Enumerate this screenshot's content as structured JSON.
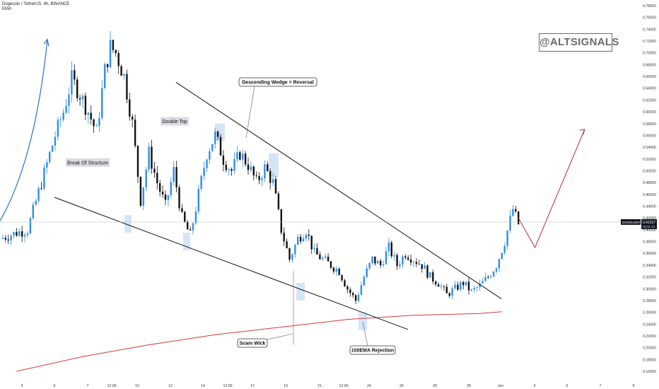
{
  "header": {
    "title": "Dogecoin / TetherUS, 4h, BINANCE",
    "indicator": "EMA"
  },
  "watermark": "@ALTSIGNALS",
  "price_tag": {
    "symbol": "DOGEUSDT",
    "price": "0.41317",
    "sub": "00:31:13"
  },
  "colors": {
    "up": "#2f8ee6",
    "down": "#111111",
    "ema": "#d23a3a",
    "projection": "#b8283a",
    "zone": "#d9dde2",
    "highlight": "#cfe2f6"
  },
  "chart_data": {
    "type": "candlestick",
    "title": "Dogecoin / TetherUS, 4h, BINANCE",
    "xlabel": "",
    "ylabel": "",
    "x_ticks": [
      "3",
      "5",
      "7",
      "12:00",
      "10",
      "12",
      "14",
      "12:00",
      "17",
      "19",
      "21",
      "12:00",
      "24",
      "26",
      "28",
      "30",
      "Jun",
      "3",
      "5",
      "7",
      "9"
    ],
    "y_ticks": [
      "0.16000",
      "0.18000",
      "0.20000",
      "0.22000",
      "0.24000",
      "0.26000",
      "0.28000",
      "0.30000",
      "0.32000",
      "0.34000",
      "0.36000",
      "0.38000",
      "0.40000",
      "0.42000",
      "0.44000",
      "0.46000",
      "0.48000",
      "0.50000",
      "0.52000",
      "0.54000",
      "0.56000",
      "0.58000",
      "0.60000",
      "0.62000",
      "0.64000",
      "0.66000",
      "0.68000",
      "0.70000",
      "0.72000",
      "0.74000",
      "0.76000",
      "0.78000"
    ],
    "ylim": [
      0.155,
      0.785
    ],
    "current_price": 0.41317,
    "price_path": [
      [
        "May 02 00:00",
        0.385
      ],
      [
        "May 03 00:00",
        0.395
      ],
      [
        "May 03 16:00",
        0.4
      ],
      [
        "May 04 12:00",
        0.48
      ],
      [
        "May 05 08:00",
        0.56
      ],
      [
        "May 05 20:00",
        0.6
      ],
      [
        "May 06 08:00",
        0.655
      ],
      [
        "May 06 20:00",
        0.63
      ],
      [
        "May 07 08:00",
        0.6
      ],
      [
        "May 07 20:00",
        0.565
      ],
      [
        "May 08 08:00",
        0.67
      ],
      [
        "May 08 16:00",
        0.71
      ],
      [
        "May 09 00:00",
        0.7
      ],
      [
        "May 09 12:00",
        0.66
      ],
      [
        "May 10 00:00",
        0.58
      ],
      [
        "May 10 12:00",
        0.45
      ],
      [
        "May 11 00:00",
        0.53
      ],
      [
        "May 11 12:00",
        0.48
      ],
      [
        "May 12 00:00",
        0.44
      ],
      [
        "May 12 12:00",
        0.5
      ],
      [
        "May 13 00:00",
        0.42
      ],
      [
        "May 13 12:00",
        0.39
      ],
      [
        "May 14 00:00",
        0.46
      ],
      [
        "May 14 12:00",
        0.53
      ],
      [
        "May 15 00:00",
        0.56
      ],
      [
        "May 15 12:00",
        0.52
      ],
      [
        "May 16 00:00",
        0.5
      ],
      [
        "May 16 12:00",
        0.53
      ],
      [
        "May 17 00:00",
        0.51
      ],
      [
        "May 17 12:00",
        0.48
      ],
      [
        "May 18 00:00",
        0.505
      ],
      [
        "May 18 12:00",
        0.48
      ],
      [
        "May 19 00:00",
        0.4
      ],
      [
        "May 19 12:00",
        0.35
      ],
      [
        "May 20 00:00",
        0.385
      ],
      [
        "May 20 12:00",
        0.4
      ],
      [
        "May 21 00:00",
        0.36
      ],
      [
        "May 21 12:00",
        0.35
      ],
      [
        "May 22 00:00",
        0.34
      ],
      [
        "May 22 12:00",
        0.33
      ],
      [
        "May 23 00:00",
        0.3
      ],
      [
        "May 23 12:00",
        0.28
      ],
      [
        "May 24 00:00",
        0.32
      ],
      [
        "May 24 12:00",
        0.35
      ],
      [
        "May 25 00:00",
        0.34
      ],
      [
        "May 25 12:00",
        0.37
      ],
      [
        "May 26 00:00",
        0.34
      ],
      [
        "May 26 12:00",
        0.36
      ],
      [
        "May 27 00:00",
        0.35
      ],
      [
        "May 27 12:00",
        0.34
      ],
      [
        "May 28 00:00",
        0.32
      ],
      [
        "May 28 12:00",
        0.31
      ],
      [
        "May 29 00:00",
        0.29
      ],
      [
        "May 29 12:00",
        0.3
      ],
      [
        "May 30 00:00",
        0.31
      ],
      [
        "May 30 12:00",
        0.295
      ],
      [
        "May 31 00:00",
        0.305
      ],
      [
        "May 31 12:00",
        0.32
      ],
      [
        "Jun 01 00:00",
        0.34
      ],
      [
        "Jun 01 12:00",
        0.38
      ],
      [
        "Jun 02 00:00",
        0.435
      ],
      [
        "Jun 02 08:00",
        0.41
      ]
    ],
    "ema_100": [
      [
        "May 03 00:00",
        0.16
      ],
      [
        "May 07 00:00",
        0.185
      ],
      [
        "May 11 00:00",
        0.205
      ],
      [
        "May 15 00:00",
        0.222
      ],
      [
        "May 19 00:00",
        0.235
      ],
      [
        "May 23 00:00",
        0.248
      ],
      [
        "May 27 00:00",
        0.255
      ],
      [
        "May 31 00:00",
        0.258
      ],
      [
        "Jun 01 08:00",
        0.261
      ]
    ],
    "projection": [
      [
        "Jun 02 08:00",
        0.42
      ],
      [
        "Jun 03 08:00",
        0.37
      ],
      [
        "Jun 06 08:00",
        0.57
      ]
    ],
    "annotations": [
      "Break Of Structure",
      "Double Top",
      "Descending Wedge = Reversal",
      "Scam Wick",
      "100EMA Rejection"
    ],
    "grid": false,
    "legend": "none"
  }
}
